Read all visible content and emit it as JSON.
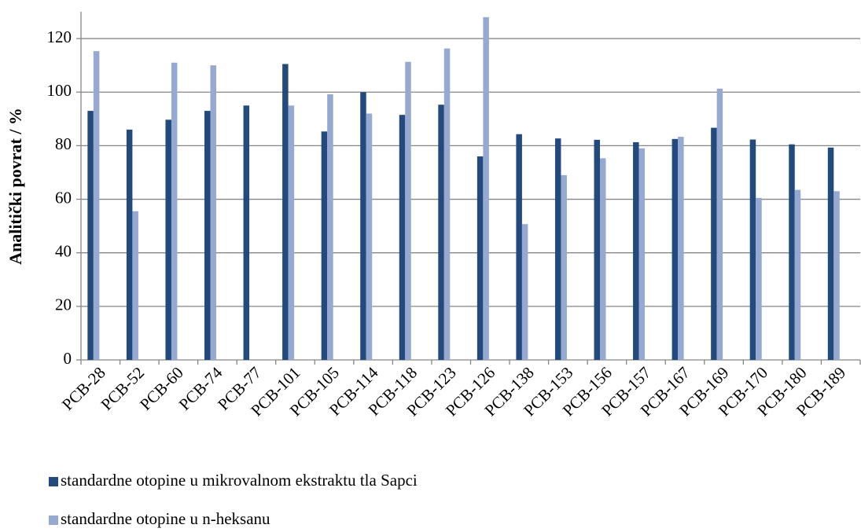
{
  "chart_data": {
    "type": "bar",
    "ylabel": "Analitički povrat / %",
    "categories": [
      "PCB-28",
      "PCB-52",
      "PCB-60",
      "PCB-74",
      "PCB-77",
      "PCB-101",
      "PCB-105",
      "PCB-114",
      "PCB-118",
      "PCB-123",
      "PCB-126",
      "PCB-138",
      "PCB-153",
      "PCB-156",
      "PCB-157",
      "PCB-167",
      "PCB-169",
      "PCB-170",
      "PCB-180",
      "PCB-189"
    ],
    "series": [
      {
        "name": "standardne otopine u mikrovalnom ekstraktu tla Sapci",
        "color": "#234a7c",
        "values": [
          93,
          86,
          89.7,
          93,
          95,
          110.5,
          85.3,
          100,
          91.5,
          95.3,
          76,
          84.3,
          82.7,
          82.2,
          81.3,
          82.5,
          86.7,
          82.3,
          80.5,
          79.3
        ]
      },
      {
        "name": "standardne otopine u n-heksanu",
        "color": "#95a9d1",
        "values": [
          115.3,
          55.5,
          111,
          110,
          null,
          95,
          99.2,
          92,
          111.3,
          116.3,
          128,
          50.7,
          69,
          75.3,
          79,
          83.3,
          101.3,
          60.5,
          63.5,
          63
        ]
      }
    ],
    "ylim": [
      0,
      130
    ],
    "yticks": [
      0,
      20,
      40,
      60,
      80,
      100,
      120
    ],
    "grid": true,
    "legend": "bottom"
  }
}
